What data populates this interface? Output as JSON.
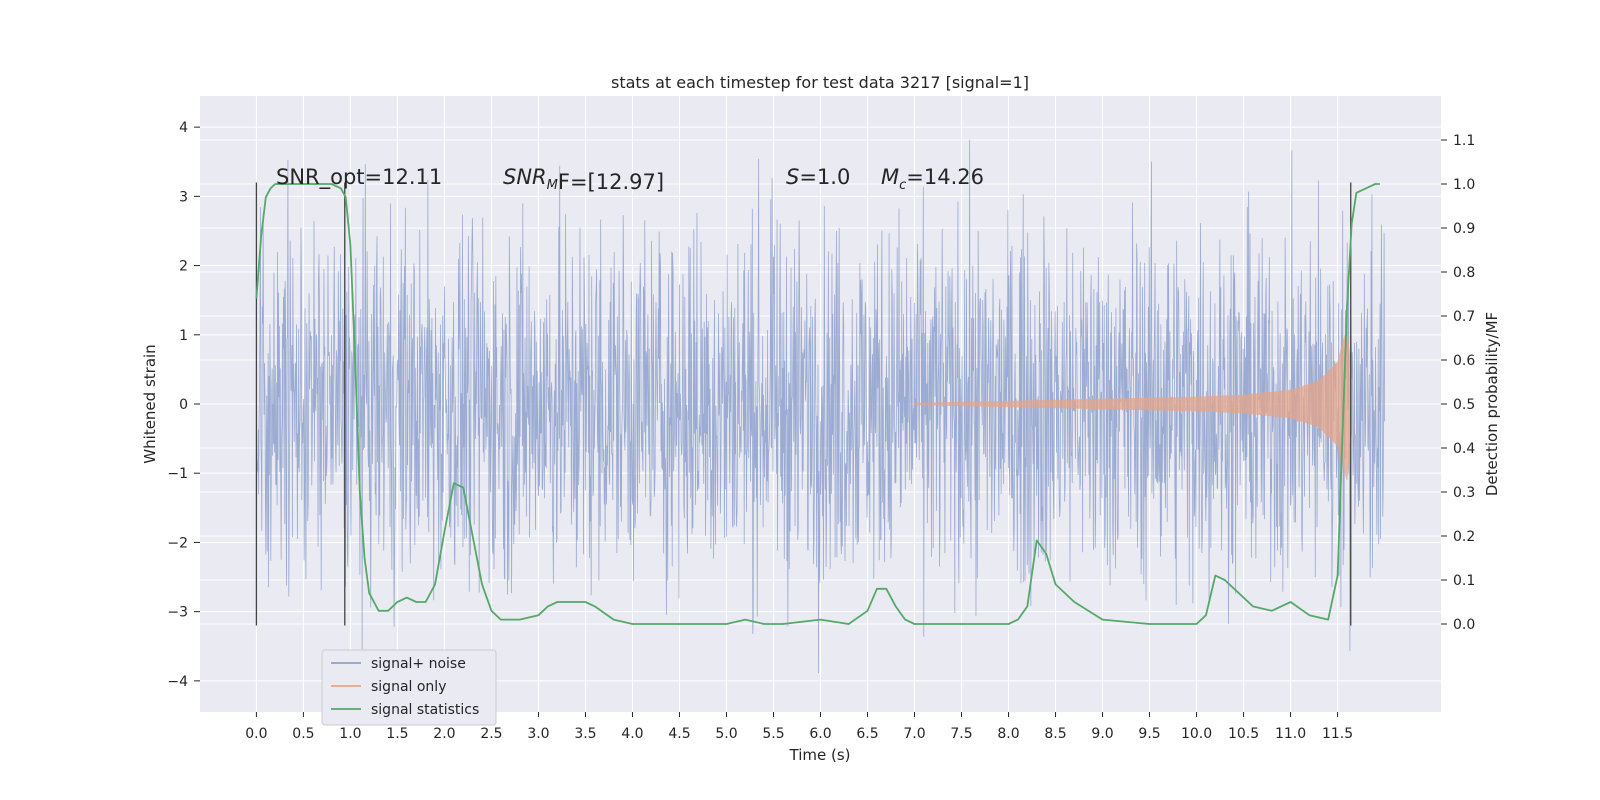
{
  "chart_data": {
    "type": "line",
    "title": "stats at each timestep for test data 3217 [signal=1]",
    "xlabel": "Time (s)",
    "ylabel": "Whitened strain",
    "ylabel_right": "Detection probability/MF",
    "xlim": [
      -0.6,
      12.6
    ],
    "ylim": [
      -4.45,
      4.45
    ],
    "ylim_right": [
      -0.2,
      1.2
    ],
    "x_ticks": [
      "0.0",
      "0.5",
      "1.0",
      "1.5",
      "2.0",
      "2.5",
      "3.0",
      "3.5",
      "4.0",
      "4.5",
      "5.0",
      "5.5",
      "6.0",
      "6.5",
      "7.0",
      "7.5",
      "8.0",
      "8.5",
      "9.0",
      "9.5",
      "10.0",
      "10.5",
      "11.0",
      "11.5"
    ],
    "y_ticks": [
      "4",
      "3",
      "2",
      "1",
      "0",
      "−1",
      "−2",
      "−3",
      "−4"
    ],
    "y_ticks_right": [
      "1.1",
      "1.0",
      "0.9",
      "0.8",
      "0.7",
      "0.6",
      "0.5",
      "0.4",
      "0.3",
      "0.2",
      "0.1",
      "0.0"
    ],
    "grid": true,
    "legend_position": "lower-left",
    "annotations": {
      "snr_opt": "SNR_opt=12.11",
      "snr_mf_base": "SNR",
      "snr_mf_sub": "M",
      "snr_mf_rest": "F=[12.97]",
      "s_var": "S",
      "s_val": "=1.0",
      "mc_var": "M",
      "mc_sub": "c",
      "mc_val": "=14.26"
    },
    "vertical_markers": [
      {
        "x": 0.0,
        "y": [
          -3.2,
          3.2
        ]
      },
      {
        "x": 0.94,
        "y": [
          -3.2,
          3.2
        ]
      },
      {
        "x": 11.64,
        "y": [
          -3.2,
          3.2
        ]
      }
    ],
    "series": [
      {
        "name": "signal+ noise",
        "color": "#8da0cb",
        "x_range": [
          0.0,
          12.0
        ],
        "amplitude_envelope": 1.3,
        "note_peaks_max": 4.1,
        "note_peaks_min": -4.1
      },
      {
        "name": "signal only",
        "color": "#e5a58a",
        "x": [
          7.0,
          8.0,
          9.0,
          10.0,
          10.5,
          11.0,
          11.3,
          11.5,
          11.6,
          11.65
        ],
        "envelope": [
          0.01,
          0.04,
          0.07,
          0.1,
          0.13,
          0.2,
          0.33,
          0.6,
          1.1,
          0.4
        ]
      },
      {
        "name": "signal statistics",
        "color": "#55a868",
        "axis": "right",
        "x": [
          0.0,
          0.05,
          0.1,
          0.15,
          0.2,
          0.4,
          0.6,
          0.8,
          0.9,
          0.95,
          1.0,
          1.05,
          1.1,
          1.15,
          1.2,
          1.3,
          1.4,
          1.5,
          1.6,
          1.7,
          1.8,
          1.9,
          2.0,
          2.1,
          2.2,
          2.3,
          2.4,
          2.5,
          2.6,
          2.8,
          3.0,
          3.1,
          3.2,
          3.4,
          3.5,
          3.6,
          3.8,
          4.0,
          4.5,
          5.0,
          5.2,
          5.4,
          5.6,
          6.0,
          6.3,
          6.5,
          6.6,
          6.7,
          6.8,
          6.9,
          7.0,
          7.5,
          8.0,
          8.1,
          8.2,
          8.3,
          8.4,
          8.5,
          8.7,
          9.0,
          9.5,
          10.0,
          10.1,
          10.2,
          10.3,
          10.4,
          10.6,
          10.8,
          11.0,
          11.2,
          11.4,
          11.5,
          11.6,
          11.65,
          11.7,
          11.8,
          11.9,
          11.95
        ],
        "y": [
          0.74,
          0.88,
          0.97,
          0.99,
          1.0,
          1.0,
          1.0,
          1.0,
          0.99,
          0.97,
          0.86,
          0.6,
          0.3,
          0.15,
          0.07,
          0.03,
          0.03,
          0.05,
          0.06,
          0.05,
          0.05,
          0.09,
          0.21,
          0.32,
          0.31,
          0.2,
          0.09,
          0.03,
          0.01,
          0.01,
          0.02,
          0.04,
          0.05,
          0.05,
          0.05,
          0.04,
          0.01,
          0.0,
          0.0,
          0.0,
          0.01,
          0.0,
          0.0,
          0.01,
          0.0,
          0.03,
          0.08,
          0.08,
          0.04,
          0.01,
          0.0,
          0.0,
          0.0,
          0.01,
          0.04,
          0.19,
          0.16,
          0.09,
          0.05,
          0.01,
          0.0,
          0.0,
          0.02,
          0.11,
          0.1,
          0.08,
          0.04,
          0.03,
          0.05,
          0.02,
          0.01,
          0.11,
          0.72,
          0.91,
          0.98,
          0.99,
          1.0,
          1.0
        ]
      }
    ]
  }
}
